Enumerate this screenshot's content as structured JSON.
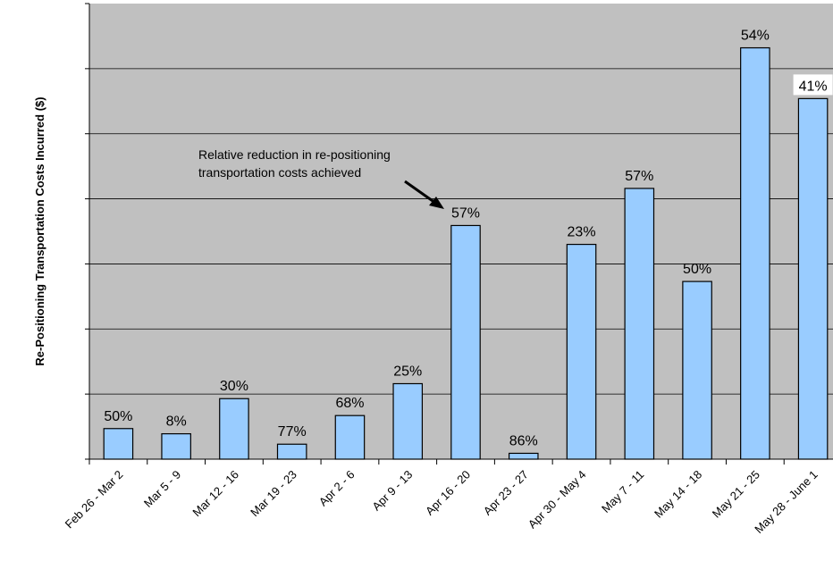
{
  "chart_data": {
    "type": "bar",
    "title": "",
    "xlabel": "",
    "ylabel": "Re-Positioning Transportation Costs Incurred ($)",
    "categories": [
      "Feb 26 - Mar 2",
      "Mar 5 - 9",
      "Mar 12 - 16",
      "Mar 19 - 23",
      "Apr 2 - 6",
      "Apr 9 - 13",
      "Apr 16 - 20",
      "Apr 23 - 27",
      "Apr 30 - May 4",
      "May 7 - 11",
      "May 14 - 18",
      "May 21 - 25",
      "May 28 - June 1"
    ],
    "values": [
      0.47,
      0.39,
      0.93,
      0.23,
      0.67,
      1.16,
      3.59,
      0.09,
      3.3,
      4.16,
      2.73,
      6.32,
      5.54
    ],
    "data_labels": [
      "50%",
      "8%",
      "30%",
      "77%",
      "68%",
      "25%",
      "57%",
      "86%",
      "23%",
      "57%",
      "50%",
      "54%",
      "41%"
    ],
    "ylim": [
      0,
      7
    ],
    "y_ticks_labeled": false,
    "grid": "horizontal",
    "plot_background": "#c0c0c0",
    "bar_color": "#99ccff",
    "bar_edge_color": "#000000",
    "annotation": {
      "lines": [
        "Relative reduction in re-positioning",
        "transportation costs achieved"
      ],
      "points_to": "Apr 16 - 20"
    }
  }
}
